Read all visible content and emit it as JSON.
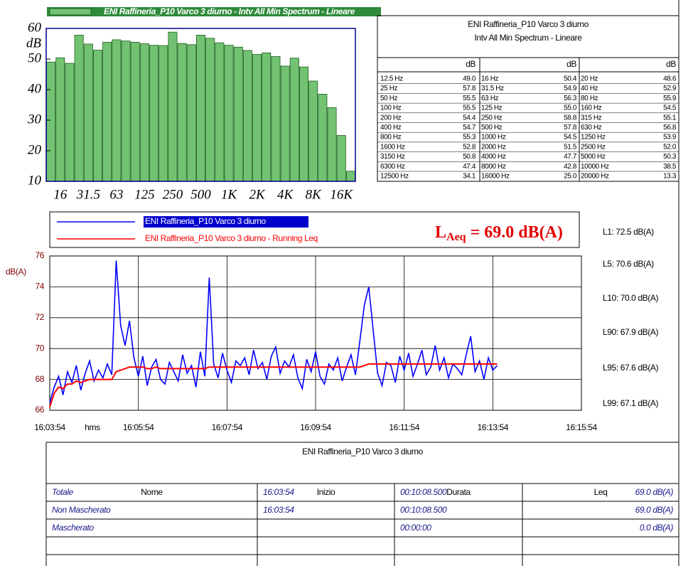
{
  "chart_data": [
    {
      "type": "bar",
      "legend_label": "ENI Raffineria_P10 Varco 3 diurno - Intv All Min Spectrum - Lineare",
      "y_label": "dB",
      "categories": [
        null,
        "16",
        null,
        null,
        "31.5",
        null,
        null,
        "63",
        null,
        null,
        "125",
        null,
        null,
        "250",
        null,
        null,
        "500",
        null,
        null,
        "1K",
        null,
        null,
        "2K",
        null,
        null,
        "4K",
        null,
        null,
        "8K",
        null,
        null,
        "16K",
        null
      ],
      "values": [
        49.0,
        50.4,
        48.6,
        57.8,
        54.9,
        52.9,
        55.5,
        56.3,
        55.9,
        55.5,
        55.0,
        54.5,
        54.4,
        58.8,
        55.1,
        54.7,
        57.8,
        56.8,
        55.3,
        54.5,
        53.9,
        52.8,
        51.5,
        52.0,
        50.8,
        47.7,
        50.3,
        47.4,
        42.8,
        38.5,
        34.1,
        25.0,
        13.3
      ],
      "value_labels": [
        "49.0",
        "50.4",
        "48.6",
        "57.8",
        "54.9",
        "52.9",
        "55.5",
        "56.3",
        "55.9",
        "55.5",
        "55.0",
        "54.5",
        "54.4",
        "58.8",
        "55.1",
        "54.7",
        "57.8",
        "56.8",
        "55.3",
        "54.5",
        "53.9",
        "52.8",
        "51.5",
        "52.0",
        "50.8",
        "47.7",
        "50.3",
        "47.4",
        "42.8",
        "38.5",
        "34.1",
        "25.0",
        "13.3"
      ],
      "color": "#72c272",
      "ylim": [
        10,
        60
      ],
      "yticks": [
        10,
        20,
        30,
        40,
        50,
        60
      ],
      "grid": false
    },
    {
      "type": "line",
      "x_label": "hms",
      "y_label": "dB(A)",
      "x": [
        57834,
        57840,
        57846,
        57852,
        57858,
        57864,
        57870,
        57876,
        57882,
        57888,
        57894,
        57900,
        57906,
        57912,
        57918,
        57924,
        57930,
        57936,
        57942,
        57948,
        57954,
        57960,
        57966,
        57972,
        57978,
        57984,
        57990,
        57996,
        58002,
        58008,
        58014,
        58020,
        58026,
        58032,
        58038,
        58044,
        58050,
        58056,
        58062,
        58068,
        58074,
        58080,
        58086,
        58092,
        58098,
        58104,
        58110,
        58116,
        58122,
        58128,
        58134,
        58140,
        58146,
        58152,
        58158,
        58164,
        58170,
        58176,
        58182,
        58188,
        58194,
        58200,
        58206,
        58212,
        58218,
        58224,
        58230,
        58236,
        58242,
        58248,
        58254,
        58260,
        58266,
        58272,
        58278,
        58284,
        58290,
        58296,
        58302,
        58308,
        58314,
        58320,
        58326,
        58332,
        58338,
        58344,
        58350,
        58356,
        58362,
        58368,
        58374,
        58380,
        58386,
        58392,
        58398,
        58404,
        58410,
        58416,
        58422,
        58428,
        58434,
        58440
      ],
      "series": [
        {
          "name": "ENI Raffineria_P10 Varco 3 diurno",
          "color": "#0000ff",
          "values": [
            66.5,
            67.5,
            68.2,
            67.0,
            68.5,
            67.8,
            68.9,
            67.3,
            68.4,
            69.2,
            67.9,
            68.6,
            68.1,
            69.0,
            68.3,
            75.7,
            71.5,
            70.2,
            71.8,
            69.4,
            68.2,
            69.5,
            67.6,
            68.8,
            69.3,
            68.0,
            67.7,
            69.1,
            68.5,
            67.9,
            69.6,
            68.4,
            68.9,
            67.5,
            69.8,
            68.2,
            74.6,
            69.0,
            68.1,
            69.7,
            68.6,
            67.8,
            69.2,
            68.9,
            69.4,
            68.3,
            69.9,
            68.7,
            69.1,
            68.0,
            69.5,
            70.1,
            68.4,
            69.2,
            68.8,
            69.6,
            68.1,
            67.4,
            69.3,
            68.5,
            69.8,
            68.2,
            67.7,
            69.0,
            68.6,
            69.4,
            67.9,
            68.8,
            69.6,
            68.3,
            70.5,
            72.8,
            74.0,
            71.2,
            68.4,
            67.6,
            69.1,
            68.9,
            67.8,
            69.5,
            68.6,
            69.7,
            68.2,
            69.0,
            69.9,
            68.3,
            68.8,
            70.2,
            68.6,
            69.4,
            68.1,
            69.0,
            68.7,
            68.3,
            69.6,
            70.8,
            68.5,
            69.2,
            68.0,
            69.4,
            68.6,
            68.9
          ]
        },
        {
          "name": "ENI Raffineria_P10 Varco 3 diurno - Running Leq",
          "color": "#ff0000",
          "values": [
            66.2,
            67.1,
            67.5,
            67.4,
            67.7,
            67.7,
            67.9,
            67.8,
            67.9,
            68.0,
            68.0,
            68.0,
            68.0,
            68.0,
            68.0,
            68.5,
            68.6,
            68.7,
            68.8,
            68.8,
            68.8,
            68.8,
            68.7,
            68.7,
            68.8,
            68.7,
            68.7,
            68.7,
            68.7,
            68.7,
            68.7,
            68.7,
            68.7,
            68.7,
            68.7,
            68.7,
            68.8,
            68.8,
            68.8,
            68.8,
            68.8,
            68.8,
            68.8,
            68.8,
            68.8,
            68.8,
            68.8,
            68.8,
            68.8,
            68.8,
            68.8,
            68.8,
            68.8,
            68.8,
            68.8,
            68.8,
            68.8,
            68.8,
            68.8,
            68.8,
            68.8,
            68.8,
            68.8,
            68.8,
            68.8,
            68.8,
            68.8,
            68.8,
            68.8,
            68.8,
            68.8,
            68.9,
            69.0,
            69.0,
            69.0,
            69.0,
            69.0,
            69.0,
            69.0,
            69.0,
            69.0,
            69.0,
            69.0,
            69.0,
            69.0,
            69.0,
            69.0,
            69.0,
            69.0,
            69.0,
            69.0,
            69.0,
            69.0,
            69.0,
            69.0,
            69.0,
            69.0,
            69.0,
            69.0,
            69.0,
            69.0,
            69.0
          ]
        }
      ],
      "xlim": [
        57834,
        58554
      ],
      "xticks": [
        {
          "value": 57834,
          "label": "16:03:54"
        },
        {
          "value": 57954,
          "label": "16:05:54"
        },
        {
          "value": 58074,
          "label": "16:07:54"
        },
        {
          "value": 58194,
          "label": "16:09:54"
        },
        {
          "value": 58314,
          "label": "16:11:54"
        },
        {
          "value": 58434,
          "label": "16:13:54"
        },
        {
          "value": 58554,
          "label": "16:15:54"
        }
      ],
      "ylim": [
        66,
        76
      ],
      "yticks": [
        66,
        68,
        70,
        72,
        74,
        76
      ],
      "grid": true,
      "annotation": {
        "symbol": "L",
        "subscript": "Aeq",
        "text": " = 69.0 dB(A)"
      },
      "stats": [
        "L1: 72.5 dB(A)",
        "L5: 70.6 dB(A)",
        "L10: 70.0 dB(A)",
        "L90: 67.9 dB(A)",
        "L95: 67.6 dB(A)",
        "L99: 67.1 dB(A)"
      ]
    }
  ],
  "spectrum_table": {
    "title": [
      "ENI Raffineria_P10 Varco 3 diurno",
      "Intv All Min Spectrum - Lineare"
    ],
    "unit": "dB",
    "bands": [
      "12.5 Hz",
      "16 Hz",
      "20 Hz",
      "25 Hz",
      "31.5 Hz",
      "40 Hz",
      "50 Hz",
      "63 Hz",
      "80 Hz",
      "100 Hz",
      "125 Hz",
      "160 Hz",
      "200 Hz",
      "250 Hz",
      "315 Hz",
      "400 Hz",
      "500 Hz",
      "630 Hz",
      "800 Hz",
      "1000 Hz",
      "1250 Hz",
      "1600 Hz",
      "2000 Hz",
      "2500 Hz",
      "3150 Hz",
      "4000 Hz",
      "5000 Hz",
      "6300 Hz",
      "8000 Hz",
      "10000 Hz",
      "12500 Hz",
      "16000 Hz",
      "20000 Hz"
    ]
  },
  "summary_table": {
    "title": "ENI Raffineria_P10 Varco 3 diurno",
    "headers": [
      "Nome",
      "Inizio",
      "Durata",
      "Leq"
    ],
    "rows": [
      [
        "Totale",
        "16:03:54",
        "00:10:08.500",
        "69.0 dB(A)"
      ],
      [
        "Non Mascherato",
        "16:03:54",
        "00:10:08.500",
        "69.0 dB(A)"
      ],
      [
        "Mascherato",
        "",
        "00:00:00",
        "0.0 dB(A)"
      ]
    ]
  }
}
